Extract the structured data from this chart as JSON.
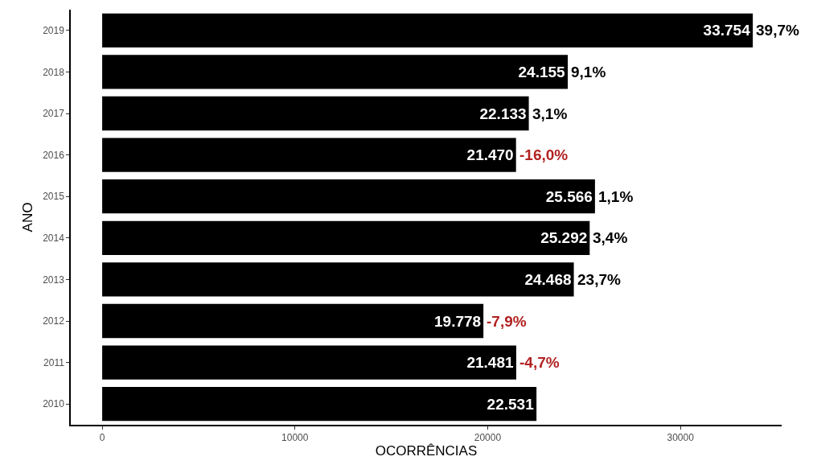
{
  "chart_data": {
    "type": "bar",
    "orientation": "horizontal",
    "xlabel": "OCORRÊNCIAS",
    "ylabel": "ANO",
    "categories": [
      "2019",
      "2018",
      "2017",
      "2016",
      "2015",
      "2014",
      "2013",
      "2012",
      "2011",
      "2010"
    ],
    "values": [
      33754,
      24155,
      22133,
      21470,
      25566,
      25292,
      24468,
      19778,
      21481,
      22531
    ],
    "value_labels": [
      "33.754",
      "24.155",
      "22.133",
      "21.470",
      "25.566",
      "25.292",
      "24.468",
      "19.778",
      "21.481",
      "22.531"
    ],
    "color": "#000000",
    "xlim": [
      -1630,
      35250
    ],
    "xticks": [
      0,
      10000,
      20000,
      30000
    ],
    "annotations": [
      {
        "text": "39,7%",
        "x": 33754,
        "y": "2019"
      },
      {
        "text": "9,1%",
        "x": 24155,
        "y": "2018"
      },
      {
        "text": "3,1%",
        "x": 22133,
        "y": "2017"
      },
      {
        "text": "-16,0%",
        "x": 21470,
        "y": "2016"
      },
      {
        "text": "1,1%",
        "x": 25566,
        "y": "2015"
      },
      {
        "text": "3,4%",
        "x": 25292,
        "y": "2014"
      },
      {
        "text": "23,7%",
        "x": 24468,
        "y": "2013"
      },
      {
        "text": "-7,9%",
        "x": 19778,
        "y": "2012"
      },
      {
        "text": "-4,7%",
        "x": 21481,
        "y": "2011"
      }
    ]
  }
}
